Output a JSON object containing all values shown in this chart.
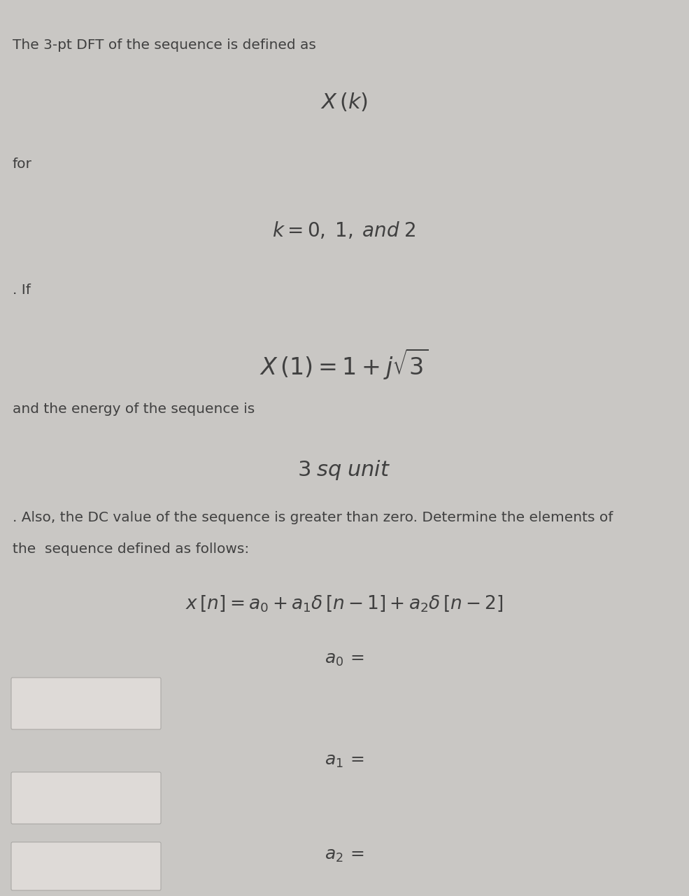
{
  "bg_color": "#c9c7c4",
  "text_color": "#404040",
  "box_color": "#dedad7",
  "box_edge_color": "#aaa8a5",
  "line1": "The 3-pt DFT of the sequence is defined as",
  "line3": "for",
  "line5": ". If",
  "line7": "and the energy of the sequence is",
  "line9": ". Also, the DC value of the sequence is greater than zero. Determine the elements of",
  "line10": "the  sequence defined as follows:"
}
